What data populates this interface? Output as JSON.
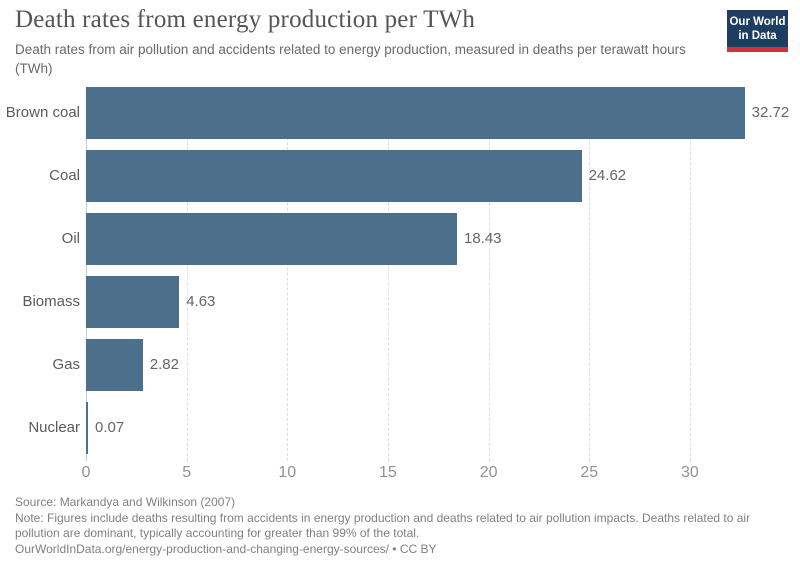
{
  "header": {
    "title": "Death rates from energy production per TWh",
    "subtitle": "Death rates from air pollution and accidents related to energy production, measured in deaths per terawatt hours (TWh)"
  },
  "logo": {
    "line1": "Our World",
    "line2": "in Data",
    "bg_color": "#1d3d63",
    "accent_color": "#d13139"
  },
  "chart_data": {
    "type": "bar",
    "orientation": "horizontal",
    "title": "Death rates from energy production per TWh",
    "xlabel": "",
    "ylabel": "",
    "categories": [
      "Brown coal",
      "Coal",
      "Oil",
      "Biomass",
      "Gas",
      "Nuclear"
    ],
    "values": [
      32.72,
      24.62,
      18.43,
      4.63,
      2.82,
      0.07
    ],
    "value_labels": [
      "32.72",
      "24.62",
      "18.43",
      "4.63",
      "2.82",
      "0.07"
    ],
    "unit": "deaths per TWh",
    "xlim": [
      0,
      33
    ],
    "xticks": [
      0,
      5,
      10,
      15,
      20,
      25,
      30
    ],
    "grid": "vertical-dashed",
    "legend": "none",
    "bar_color": "#4c708c"
  },
  "footer": {
    "source": "Source: Markandya and Wilkinson (2007)",
    "note": "Note: Figures include deaths resulting from accidents in energy production and deaths related to air pollution impacts. Deaths related to air pollution are dominant, typically accounting for greater than 99% of the total.",
    "url_line": "OurWorldInData.org/energy-production-and-changing-energy-sources/ • CC BY"
  }
}
